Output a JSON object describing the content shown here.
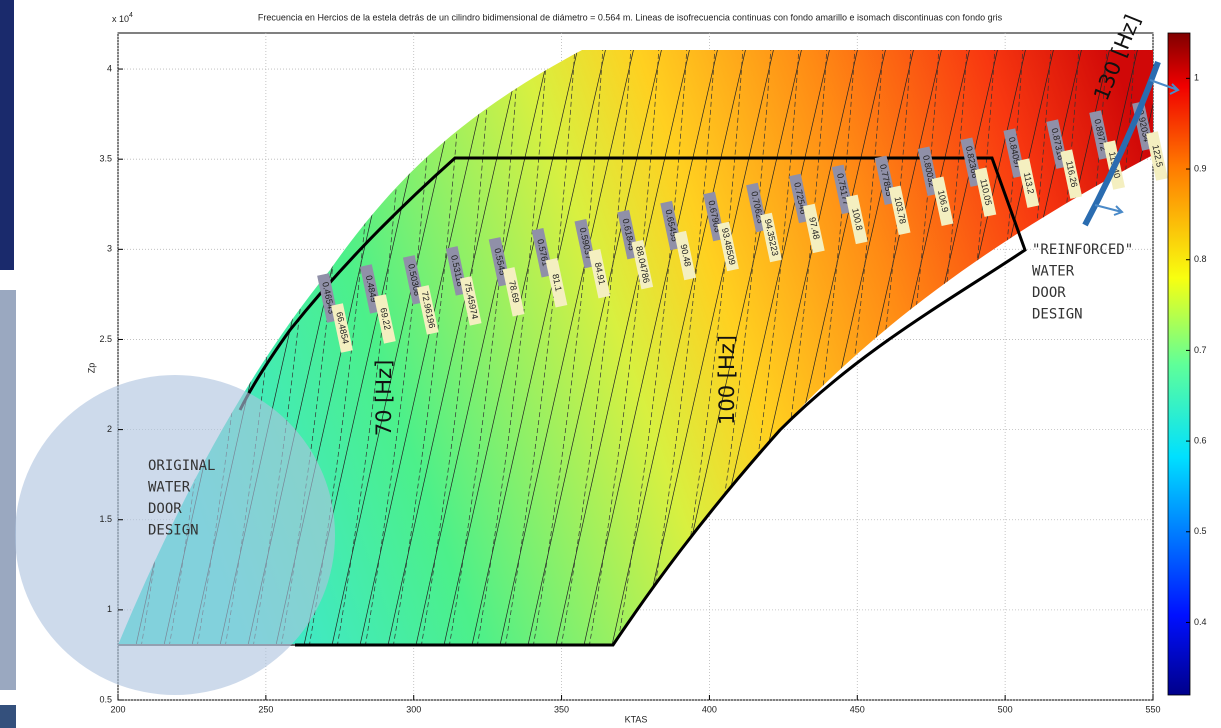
{
  "chart_data": {
    "type": "contour",
    "title": "Frecuencia en Hercios de la estela detrás de un cilindro bidimensional de diámetro = 0.564 m. Lineas de isofrecuencia continuas con fondo amarillo e isomach discontinuas con fondo gris",
    "x_label": "KTAS",
    "y_label": "Zp",
    "y_exponent": {
      "base": "x 10",
      "power": "4"
    },
    "xlim": [
      200,
      550
    ],
    "xticks": [
      200,
      250,
      300,
      350,
      400,
      450,
      500,
      550
    ],
    "ylim": [
      0.5,
      4.2
    ],
    "yticks": [
      0.5,
      1,
      1.5,
      2,
      2.5,
      3,
      3.5,
      4
    ],
    "grid": true,
    "colorbar": {
      "lim": [
        0.32,
        1.05
      ],
      "ticks": [
        0.4,
        0.5,
        0.6,
        0.7,
        0.8,
        0.9,
        1
      ],
      "colormap": "jet"
    },
    "mach_labels": [
      "0.46543",
      "0.4849",
      "0.50308",
      "0.53118",
      "0.5545",
      "0.5761",
      "0.59037",
      "0.61845",
      "0.65455",
      "0.67903",
      "0.70623",
      "0.72546",
      "0.75177",
      "0.77855",
      "0.80032",
      "0.82366",
      "0.84097",
      "0.87316",
      "0.89772",
      "0.92034"
    ],
    "frequency_labels": [
      "66.4854",
      "69.22",
      "72.96196",
      "75.45974",
      "78.69",
      "81.1",
      "84.91",
      "88.04786",
      "90.48",
      "93.48509",
      "94.35223",
      "97.48",
      "100.8",
      "103.78",
      "106.9",
      "110.05",
      "113.2",
      "116.26",
      "119.40",
      "122.5"
    ],
    "annotations": [
      "70 [Hz]",
      "100 [Hz]",
      "130 [Hz]"
    ],
    "design_labels": {
      "original": [
        "ORIGINAL",
        "WATER",
        "DOOR",
        "DESIGN"
      ],
      "reinforced": [
        "\"REINFORCED\"",
        "WATER",
        "DOOR",
        "DESIGN"
      ]
    }
  }
}
